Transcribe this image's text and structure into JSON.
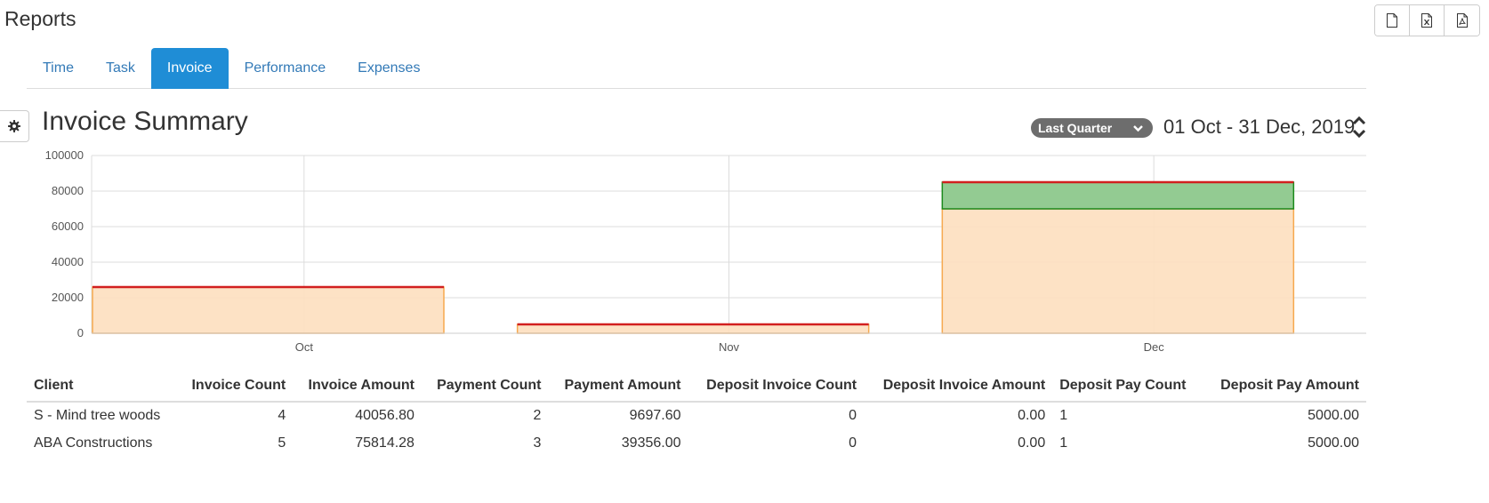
{
  "page": {
    "title": "Reports"
  },
  "export": {
    "buttons": [
      {
        "icon": "file-icon"
      },
      {
        "icon": "excel-icon"
      },
      {
        "icon": "pdf-icon"
      }
    ]
  },
  "tabs": [
    {
      "label": "Time",
      "active": false
    },
    {
      "label": "Task",
      "active": false
    },
    {
      "label": "Invoice",
      "active": true
    },
    {
      "label": "Performance",
      "active": false
    },
    {
      "label": "Expenses",
      "active": false
    }
  ],
  "summary": {
    "title": "Invoice Summary",
    "period": "Last Quarter",
    "date_range": "01 Oct - 31 Dec, 2019"
  },
  "colors": {
    "accent": "#1f8dd6",
    "invoice_fill": "#fddfbf",
    "invoice_stroke": "#f6a94f",
    "payment_line": "#d21f1f",
    "deposit_fill": "#93cb92",
    "deposit_stroke": "#1c8a1c"
  },
  "chart_data": {
    "type": "bar",
    "categories": [
      "Oct",
      "Nov",
      "Dec"
    ],
    "ylim": [
      0,
      100000
    ],
    "yticks": [
      "0",
      "20000",
      "40000",
      "60000",
      "80000",
      "100000"
    ],
    "grid": true,
    "series": [
      {
        "values": [
          26000,
          5000,
          70000
        ]
      },
      {
        "values": [
          0,
          0,
          15000
        ]
      },
      {
        "values": [
          26000,
          5000,
          85000
        ]
      }
    ]
  },
  "table": {
    "columns": [
      "Client",
      "Invoice Count",
      "Invoice Amount",
      "Payment Count",
      "Payment Amount",
      "Deposit Invoice Count",
      "Deposit Invoice Amount",
      "Deposit Pay Count",
      "Deposit Pay Amount"
    ],
    "rows": [
      [
        "S - Mind tree woods",
        "4",
        "40056.80",
        "2",
        "9697.60",
        "0",
        "0.00",
        "1",
        "5000.00"
      ],
      [
        "ABA Constructions",
        "5",
        "75814.28",
        "3",
        "39356.00",
        "0",
        "0.00",
        "1",
        "5000.00"
      ]
    ]
  }
}
